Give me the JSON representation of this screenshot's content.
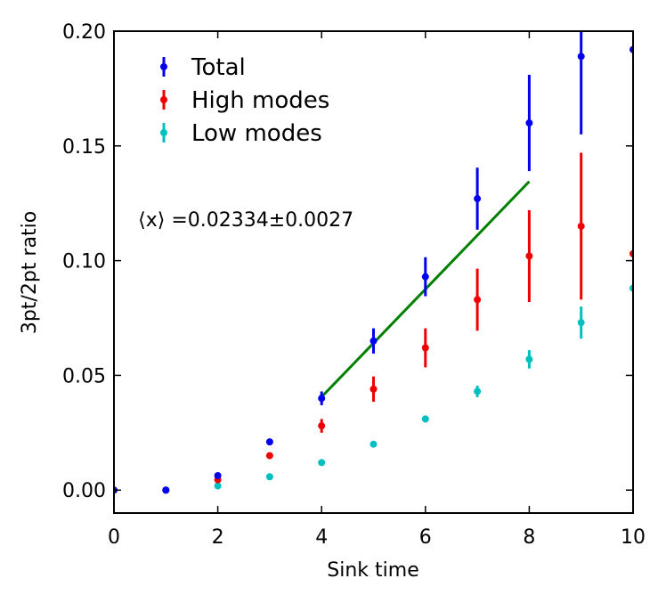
{
  "chart_data": {
    "type": "scatter",
    "title": "",
    "xlabel": "Sink time",
    "ylabel": "3pt/2pt ratio",
    "xlim": [
      0,
      10
    ],
    "ylim": [
      -0.01,
      0.2
    ],
    "x_ticks": [
      0,
      2,
      4,
      6,
      8,
      10
    ],
    "x_tick_labels": [
      "0",
      "2",
      "4",
      "6",
      "8",
      "10"
    ],
    "y_ticks": [
      0.0,
      0.05,
      0.1,
      0.15,
      0.2
    ],
    "y_tick_labels": [
      "0.00",
      "0.05",
      "0.10",
      "0.15",
      "0.20"
    ],
    "annotation": "⟨x⟩ =0.02334±0.0027",
    "annotation_position": [
      0.5,
      0.118
    ],
    "legend_position": "top-left",
    "series": [
      {
        "name": "Total",
        "color": "#0000ee",
        "x": [
          0,
          1,
          2,
          3,
          4,
          5,
          6,
          7,
          8,
          9,
          10
        ],
        "y": [
          0.0,
          0.0,
          0.0063,
          0.021,
          0.04,
          0.065,
          0.093,
          0.127,
          0.16,
          0.189,
          0.192
        ],
        "err": [
          0.0002,
          0.0003,
          0.0008,
          0.0012,
          0.003,
          0.0055,
          0.0085,
          0.0135,
          0.021,
          0.034,
          0
        ]
      },
      {
        "name": "High modes",
        "color": "#ee0000",
        "x": [
          0,
          1,
          2,
          3,
          4,
          5,
          6,
          7,
          8,
          9,
          10
        ],
        "y": [
          0.0,
          0.0,
          0.0045,
          0.015,
          0.028,
          0.044,
          0.062,
          0.083,
          0.102,
          0.115,
          0.103
        ],
        "err": [
          0.0002,
          0.0003,
          0.0008,
          0.0012,
          0.003,
          0.0055,
          0.0085,
          0.0135,
          0.02,
          0.032,
          0
        ]
      },
      {
        "name": "Low modes",
        "color": "#00bfbf",
        "x": [
          0,
          1,
          2,
          3,
          4,
          5,
          6,
          7,
          8,
          9,
          10
        ],
        "y": [
          0.0,
          0.0,
          0.0018,
          0.0058,
          0.012,
          0.02,
          0.031,
          0.043,
          0.057,
          0.073,
          0.088
        ],
        "err": [
          0.0002,
          0.0003,
          0.0005,
          0.0006,
          0.0008,
          0.001,
          0.0015,
          0.0025,
          0.004,
          0.007,
          0
        ]
      }
    ],
    "fit_line": {
      "color": "#008000",
      "x": [
        4,
        8
      ],
      "y": [
        0.0406,
        0.1345
      ]
    }
  }
}
